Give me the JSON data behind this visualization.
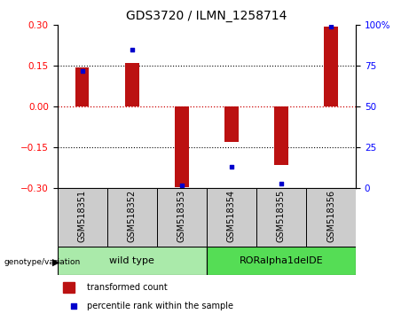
{
  "title": "GDS3720 / ILMN_1258714",
  "samples": [
    "GSM518351",
    "GSM518352",
    "GSM518353",
    "GSM518354",
    "GSM518355",
    "GSM518356"
  ],
  "bar_values": [
    0.143,
    0.16,
    -0.295,
    -0.128,
    -0.215,
    0.295
  ],
  "percentile_values": [
    72,
    85,
    2,
    13,
    3,
    99
  ],
  "ylim_left": [
    -0.3,
    0.3
  ],
  "ylim_right": [
    0,
    100
  ],
  "yticks_left": [
    -0.3,
    -0.15,
    0,
    0.15,
    0.3
  ],
  "yticks_right": [
    0,
    25,
    50,
    75,
    100
  ],
  "bar_color": "#bb1111",
  "point_color": "#0000cc",
  "zero_line_color": "#cc0000",
  "group1_color": "#aaeaaa",
  "group2_color": "#55dd55",
  "group1_label": "wild type",
  "group2_label": "RORalpha1delDE",
  "legend_bar_label": "transformed count",
  "legend_point_label": "percentile rank within the sample",
  "genotype_label": "genotype/variation",
  "label_box_color": "#cccccc",
  "title_fontsize": 10,
  "tick_fontsize": 7.5,
  "label_fontsize": 7,
  "group_fontsize": 8
}
